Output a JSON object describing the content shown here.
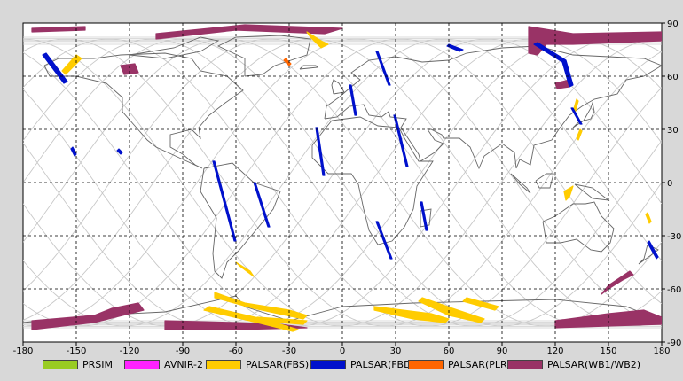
{
  "map": {
    "lon_range": [
      -180,
      180
    ],
    "lat_range": [
      -90,
      90
    ],
    "x_ticks": [
      "-180",
      "-150",
      "-120",
      "-90",
      "-60",
      "-30",
      "0",
      "30",
      "60",
      "90",
      "120",
      "150",
      "180"
    ],
    "y_ticks": [
      "90",
      "60",
      "30",
      "0",
      "-30",
      "-60",
      "-90"
    ],
    "grid": true
  },
  "legend": [
    {
      "label": "PRSIM",
      "color": "#99cc22"
    },
    {
      "label": "AVNIR-2",
      "color": "#ff22ff"
    },
    {
      "label": "PALSAR(FBS)",
      "color": "#ffcc00"
    },
    {
      "label": "PALSAR(FBD)",
      "color": "#0011cc"
    },
    {
      "label": "PALSAR(PLR)",
      "color": "#ff6600"
    },
    {
      "label": "PALSAR(WB1/WB2)",
      "color": "#993366"
    }
  ],
  "swaths": {
    "wb": [
      [
        [
          -175,
          87
        ],
        [
          -145,
          88
        ],
        [
          -145,
          86
        ],
        [
          -175,
          85
        ]
      ],
      [
        [
          -105,
          84
        ],
        [
          -55,
          89
        ],
        [
          0,
          87
        ],
        [
          -10,
          84
        ],
        [
          -60,
          86
        ],
        [
          -105,
          81
        ]
      ],
      [
        [
          -125,
          66
        ],
        [
          -117,
          67
        ],
        [
          -115,
          62
        ],
        [
          -123,
          61
        ]
      ],
      [
        [
          -175,
          -78
        ],
        [
          -140,
          -75
        ],
        [
          -130,
          -71
        ],
        [
          -115,
          -68
        ],
        [
          -112,
          -72
        ],
        [
          -140,
          -79
        ],
        [
          -175,
          -83
        ]
      ],
      [
        [
          -100,
          -78
        ],
        [
          -60,
          -79
        ],
        [
          -35,
          -80
        ],
        [
          -20,
          -82
        ],
        [
          -60,
          -83
        ],
        [
          -100,
          -83
        ]
      ],
      [
        [
          105,
          88
        ],
        [
          130,
          84
        ],
        [
          180,
          85
        ],
        [
          180,
          80
        ],
        [
          130,
          78
        ],
        [
          115,
          78
        ],
        [
          110,
          72
        ],
        [
          105,
          73
        ]
      ],
      [
        [
          120,
          56
        ],
        [
          128,
          58
        ],
        [
          128,
          54
        ],
        [
          121,
          53
        ]
      ],
      [
        [
          150,
          -60
        ],
        [
          158,
          -55
        ],
        [
          164,
          -52
        ],
        [
          162,
          -50
        ],
        [
          150,
          -58
        ],
        [
          146,
          -63
        ]
      ],
      [
        [
          120,
          -78
        ],
        [
          150,
          -74
        ],
        [
          170,
          -72
        ],
        [
          180,
          -76
        ],
        [
          180,
          -80
        ],
        [
          150,
          -81
        ],
        [
          120,
          -82
        ]
      ]
    ],
    "fbs": [
      [
        [
          -158,
          63
        ],
        [
          -150,
          72
        ],
        [
          -147,
          70
        ],
        [
          -156,
          61
        ]
      ],
      [
        [
          -20,
          85
        ],
        [
          -12,
          80
        ],
        [
          -8,
          78
        ],
        [
          -12,
          76
        ],
        [
          -18,
          82
        ]
      ],
      [
        [
          -60,
          -45
        ],
        [
          -52,
          -50
        ],
        [
          -50,
          -53
        ],
        [
          -58,
          -47
        ]
      ],
      [
        [
          -72,
          -62
        ],
        [
          -55,
          -68
        ],
        [
          -30,
          -72
        ],
        [
          -20,
          -75
        ],
        [
          -22,
          -77
        ],
        [
          -50,
          -71
        ],
        [
          -72,
          -65
        ]
      ],
      [
        [
          -75,
          -70
        ],
        [
          -45,
          -77
        ],
        [
          -25,
          -83
        ],
        [
          -28,
          -84
        ],
        [
          -48,
          -79
        ],
        [
          -78,
          -72
        ]
      ],
      [
        [
          -48,
          -76
        ],
        [
          -20,
          -78
        ],
        [
          -22,
          -80
        ],
        [
          -50,
          -78
        ]
      ],
      [
        [
          18,
          -70
        ],
        [
          50,
          -74
        ],
        [
          60,
          -77
        ],
        [
          58,
          -79
        ],
        [
          40,
          -77
        ],
        [
          18,
          -72
        ]
      ],
      [
        [
          45,
          -65
        ],
        [
          65,
          -72
        ],
        [
          80,
          -77
        ],
        [
          78,
          -79
        ],
        [
          60,
          -75
        ],
        [
          43,
          -67
        ]
      ],
      [
        [
          70,
          -65
        ],
        [
          88,
          -70
        ],
        [
          86,
          -72
        ],
        [
          68,
          -67
        ]
      ],
      [
        [
          130,
          40
        ],
        [
          132,
          47
        ],
        [
          133,
          46
        ],
        [
          131,
          39
        ]
      ],
      [
        [
          132,
          25
        ],
        [
          134,
          30
        ],
        [
          135,
          29
        ],
        [
          133,
          24
        ]
      ],
      [
        [
          125,
          -5
        ],
        [
          130,
          -2
        ],
        [
          128,
          -8
        ],
        [
          126,
          -10
        ]
      ],
      [
        [
          172,
          -17
        ],
        [
          174,
          -22
        ],
        [
          173,
          -23
        ],
        [
          171,
          -18
        ]
      ]
    ],
    "fbd": [
      [
        [
          -167,
          73
        ],
        [
          -155,
          57
        ],
        [
          -157,
          56
        ],
        [
          -169,
          72
        ]
      ],
      [
        [
          -152,
          20
        ],
        [
          -150,
          16
        ],
        [
          -151,
          15
        ],
        [
          -153,
          19
        ]
      ],
      [
        [
          -126,
          19
        ],
        [
          -124,
          17
        ],
        [
          -125,
          16
        ],
        [
          -127,
          18
        ]
      ],
      [
        [
          -72,
          12
        ],
        [
          -60,
          -33
        ],
        [
          -61,
          -33
        ],
        [
          -73,
          12
        ]
      ],
      [
        [
          -49,
          0
        ],
        [
          -41,
          -25
        ],
        [
          -42,
          -25
        ],
        [
          -50,
          0
        ]
      ],
      [
        [
          -14,
          31
        ],
        [
          -10,
          4
        ],
        [
          -11,
          4
        ],
        [
          -15,
          31
        ]
      ],
      [
        [
          5,
          55
        ],
        [
          8,
          38
        ],
        [
          7,
          38
        ],
        [
          4,
          55
        ]
      ],
      [
        [
          20,
          74
        ],
        [
          27,
          55
        ],
        [
          26,
          55
        ],
        [
          19,
          74
        ]
      ],
      [
        [
          30,
          38
        ],
        [
          37,
          9
        ],
        [
          36,
          9
        ],
        [
          29,
          38
        ]
      ],
      [
        [
          20,
          -22
        ],
        [
          28,
          -43
        ],
        [
          27,
          -43
        ],
        [
          19,
          -22
        ]
      ],
      [
        [
          45,
          -11
        ],
        [
          48,
          -27
        ],
        [
          47,
          -27
        ],
        [
          44,
          -11
        ]
      ],
      [
        [
          60,
          78
        ],
        [
          68,
          75
        ],
        [
          66,
          74
        ],
        [
          59,
          77
        ]
      ],
      [
        [
          110,
          79
        ],
        [
          126,
          69
        ],
        [
          130,
          55
        ],
        [
          128,
          54
        ],
        [
          124,
          68
        ],
        [
          108,
          78
        ]
      ],
      [
        [
          130,
          42
        ],
        [
          135,
          33
        ],
        [
          134,
          33
        ],
        [
          129,
          42
        ]
      ],
      [
        [
          173,
          -33
        ],
        [
          178,
          -42
        ],
        [
          177,
          -43
        ],
        [
          172,
          -34
        ]
      ]
    ],
    "plr": [
      [
        [
          -32,
          70
        ],
        [
          -29,
          67
        ],
        [
          -30,
          66
        ],
        [
          -33,
          69
        ]
      ]
    ]
  }
}
